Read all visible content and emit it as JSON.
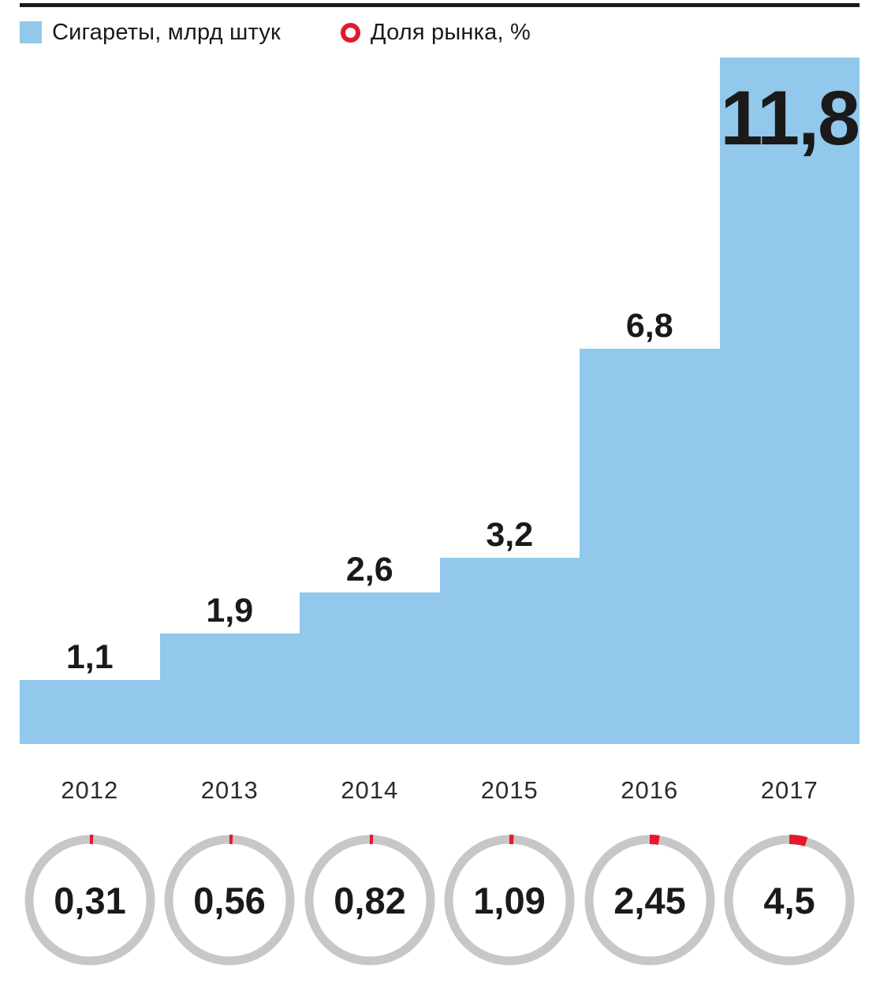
{
  "legend": {
    "bars_label": "Сигареты, млрд штук",
    "share_label": "Доля рынка, %"
  },
  "colors": {
    "bar_blue": "#91C8EB",
    "share_red": "#E3192E",
    "ring_gray": "#C7C7C7",
    "text_black": "#1A1A1A",
    "rule_black": "#1A1A1A"
  },
  "chart_data": {
    "type": "bar",
    "categories": [
      "2012",
      "2013",
      "2014",
      "2015",
      "2016",
      "2017"
    ],
    "series": [
      {
        "name": "Сигареты, млрд штук",
        "render": "bar",
        "values": [
          1.1,
          1.9,
          2.6,
          3.2,
          6.8,
          11.8
        ],
        "display": [
          "1,1",
          "1,9",
          "2,6",
          "3,2",
          "6,8",
          "11,8"
        ],
        "color": "#91C8EB"
      },
      {
        "name": "Доля рынка, %",
        "render": "donut",
        "values": [
          0.31,
          0.56,
          0.82,
          1.09,
          2.45,
          4.5
        ],
        "display": [
          "0,31",
          "0,56",
          "0,82",
          "1,09",
          "2,45",
          "4,5"
        ],
        "color": "#E3192E",
        "ring_color": "#C7C7C7"
      }
    ],
    "title": "",
    "xlabel": "",
    "ylabel": "",
    "ylim": [
      0,
      11.8
    ],
    "grid": false,
    "legend_position": "top",
    "notes": "step-style contiguous bars; value labels above bars, last value inside bar; donut red arc starts at 12 o'clock, clockwise, angle = value% of 360deg"
  }
}
